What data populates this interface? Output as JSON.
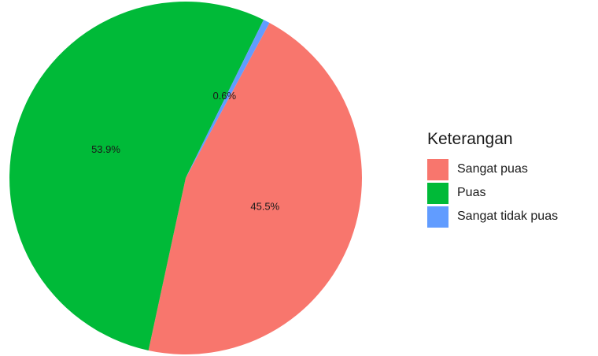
{
  "chart_data": {
    "type": "pie",
    "legend_title": "Keterangan",
    "legend_position": "right",
    "slices": [
      {
        "name": "Sangat puas",
        "value": 45.5,
        "label": "45.5%",
        "color": "#F8766D"
      },
      {
        "name": "Puas",
        "value": 53.9,
        "label": "53.9%",
        "color": "#00BA38"
      },
      {
        "name": "Sangat tidak puas",
        "value": 0.6,
        "label": "0.6%",
        "color": "#619CFF"
      }
    ]
  }
}
